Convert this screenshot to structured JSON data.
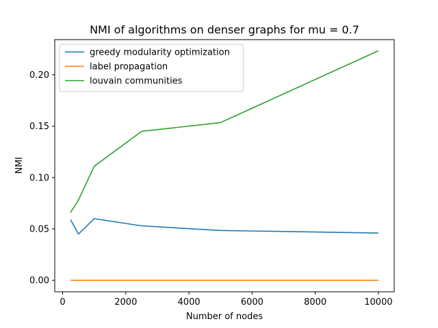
{
  "chart_data": {
    "type": "line",
    "title": "NMI of algorithms on denser graphs for mu = 0.7",
    "xlabel": "Number of nodes",
    "ylabel": "NMI",
    "xlim": [
      -250,
      10500
    ],
    "ylim": [
      -0.0112,
      0.2343
    ],
    "xticks": [
      0,
      2000,
      4000,
      6000,
      8000,
      10000
    ],
    "xtick_labels": [
      "0",
      "2000",
      "4000",
      "6000",
      "8000",
      "10000"
    ],
    "yticks": [
      0.0,
      0.05,
      0.1,
      0.15,
      0.2
    ],
    "ytick_labels": [
      "0.00",
      "0.05",
      "0.10",
      "0.15",
      "0.20"
    ],
    "grid": false,
    "legend_position": "top-left",
    "x": [
      250,
      500,
      1000,
      2500,
      5000,
      10000
    ],
    "series": [
      {
        "name": "greedy modularity optimization",
        "color": "#1f77b4",
        "values": [
          0.059,
          0.045,
          0.06,
          0.053,
          0.0485,
          0.046
        ]
      },
      {
        "name": "label propagation",
        "color": "#ff7f0e",
        "values": [
          0.0,
          0.0,
          0.0,
          0.0,
          0.0,
          0.0
        ]
      },
      {
        "name": "louvain communities",
        "color": "#2ca02c",
        "values": [
          0.066,
          0.078,
          0.111,
          0.145,
          0.1535,
          0.2235
        ]
      }
    ]
  }
}
